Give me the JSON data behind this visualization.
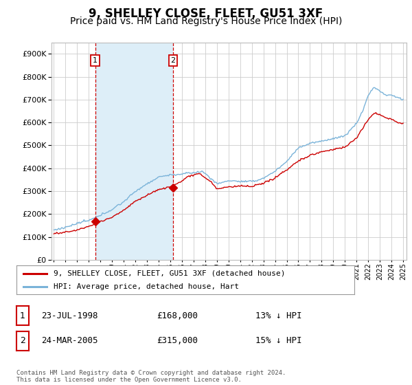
{
  "title": "9, SHELLEY CLOSE, FLEET, GU51 3XF",
  "subtitle": "Price paid vs. HM Land Registry's House Price Index (HPI)",
  "ytick_vals": [
    0,
    100000,
    200000,
    300000,
    400000,
    500000,
    600000,
    700000,
    800000,
    900000
  ],
  "ylim": [
    0,
    950000
  ],
  "xlim_start": 1994.8,
  "xlim_end": 2025.3,
  "hpi_color": "#7ab3d9",
  "hpi_fill_color": "#ddeef8",
  "price_color": "#cc0000",
  "purchase1_date": 1998.55,
  "purchase1_price": 168000,
  "purchase2_date": 2005.23,
  "purchase2_price": 315000,
  "legend_label_red": "9, SHELLEY CLOSE, FLEET, GU51 3XF (detached house)",
  "legend_label_blue": "HPI: Average price, detached house, Hart",
  "table_rows": [
    {
      "num": "1",
      "date": "23-JUL-1998",
      "price": "£168,000",
      "hpi": "13% ↓ HPI"
    },
    {
      "num": "2",
      "date": "24-MAR-2005",
      "price": "£315,000",
      "hpi": "15% ↓ HPI"
    }
  ],
  "footer": "Contains HM Land Registry data © Crown copyright and database right 2024.\nThis data is licensed under the Open Government Licence v3.0.",
  "bg_color": "#ffffff",
  "grid_color": "#cccccc",
  "title_fontsize": 12,
  "subtitle_fontsize": 10
}
